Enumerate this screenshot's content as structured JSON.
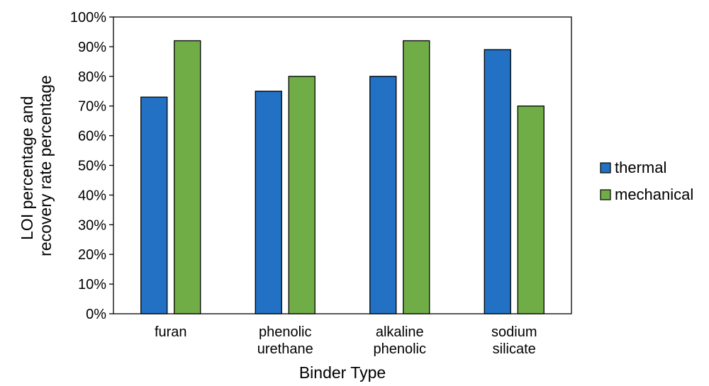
{
  "chart_data": {
    "type": "bar",
    "title": "",
    "xlabel": "Binder Type",
    "ylabel": [
      "LOI percentage and",
      "recovery rate percentage"
    ],
    "categories": [
      [
        "furan"
      ],
      [
        "phenolic",
        "urethane"
      ],
      [
        "alkaline",
        "phenolic"
      ],
      [
        "sodium",
        "silicate"
      ]
    ],
    "series": [
      {
        "name": "thermal",
        "values": [
          73,
          75,
          80,
          89
        ],
        "color": "#2271c4"
      },
      {
        "name": "mechanical",
        "values": [
          92,
          80,
          92,
          70
        ],
        "color": "#70ad47"
      }
    ],
    "ylim": [
      0,
      100
    ],
    "yticks": [
      0,
      10,
      20,
      30,
      40,
      50,
      60,
      70,
      80,
      90,
      100
    ],
    "ytick_labels": [
      "0%",
      "10%",
      "20%",
      "30%",
      "40%",
      "50%",
      "60%",
      "70%",
      "80%",
      "90%",
      "100%"
    ],
    "grid": false,
    "legend_position": "right"
  }
}
